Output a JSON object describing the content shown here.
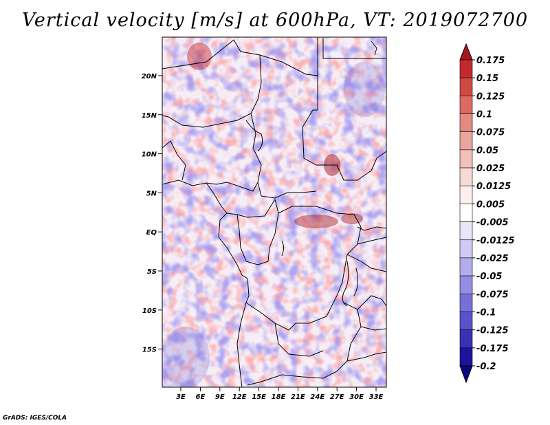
{
  "title": "Vertical velocity [m/s] at 600hPa, VT: 2019072700",
  "footer": "GrADS: IGES/COLA",
  "lat_labels": [
    "20N",
    "15N",
    "10N",
    "5N",
    "EQ",
    "5S",
    "10S",
    "15S"
  ],
  "lon_labels": [
    "3E",
    "6E",
    "9E",
    "12E",
    "15E",
    "18E",
    "21E",
    "24E",
    "27E",
    "30E",
    "33E"
  ],
  "colorbar": {
    "labels": [
      "0.175",
      "0.15",
      "0.125",
      "0.1",
      "0.075",
      "0.05",
      "0.025",
      "0.0125",
      "0.005",
      "-0.005",
      "-0.0125",
      "-0.025",
      "-0.05",
      "-0.075",
      "-0.1",
      "-0.125",
      "-0.175",
      "-0.2"
    ],
    "colors": [
      "#a9141c",
      "#c12a2c",
      "#d04a44",
      "#db6a62",
      "#e48a80",
      "#eba69c",
      "#f2c2ba",
      "#f7dbd6",
      "#fcefed",
      "#ffffff",
      "#e8e6fa",
      "#cfcbf5",
      "#b3aded",
      "#958ee3",
      "#7770d8",
      "#5a52cb",
      "#3a30b6",
      "#1e149c",
      "#0c0580"
    ]
  }
}
